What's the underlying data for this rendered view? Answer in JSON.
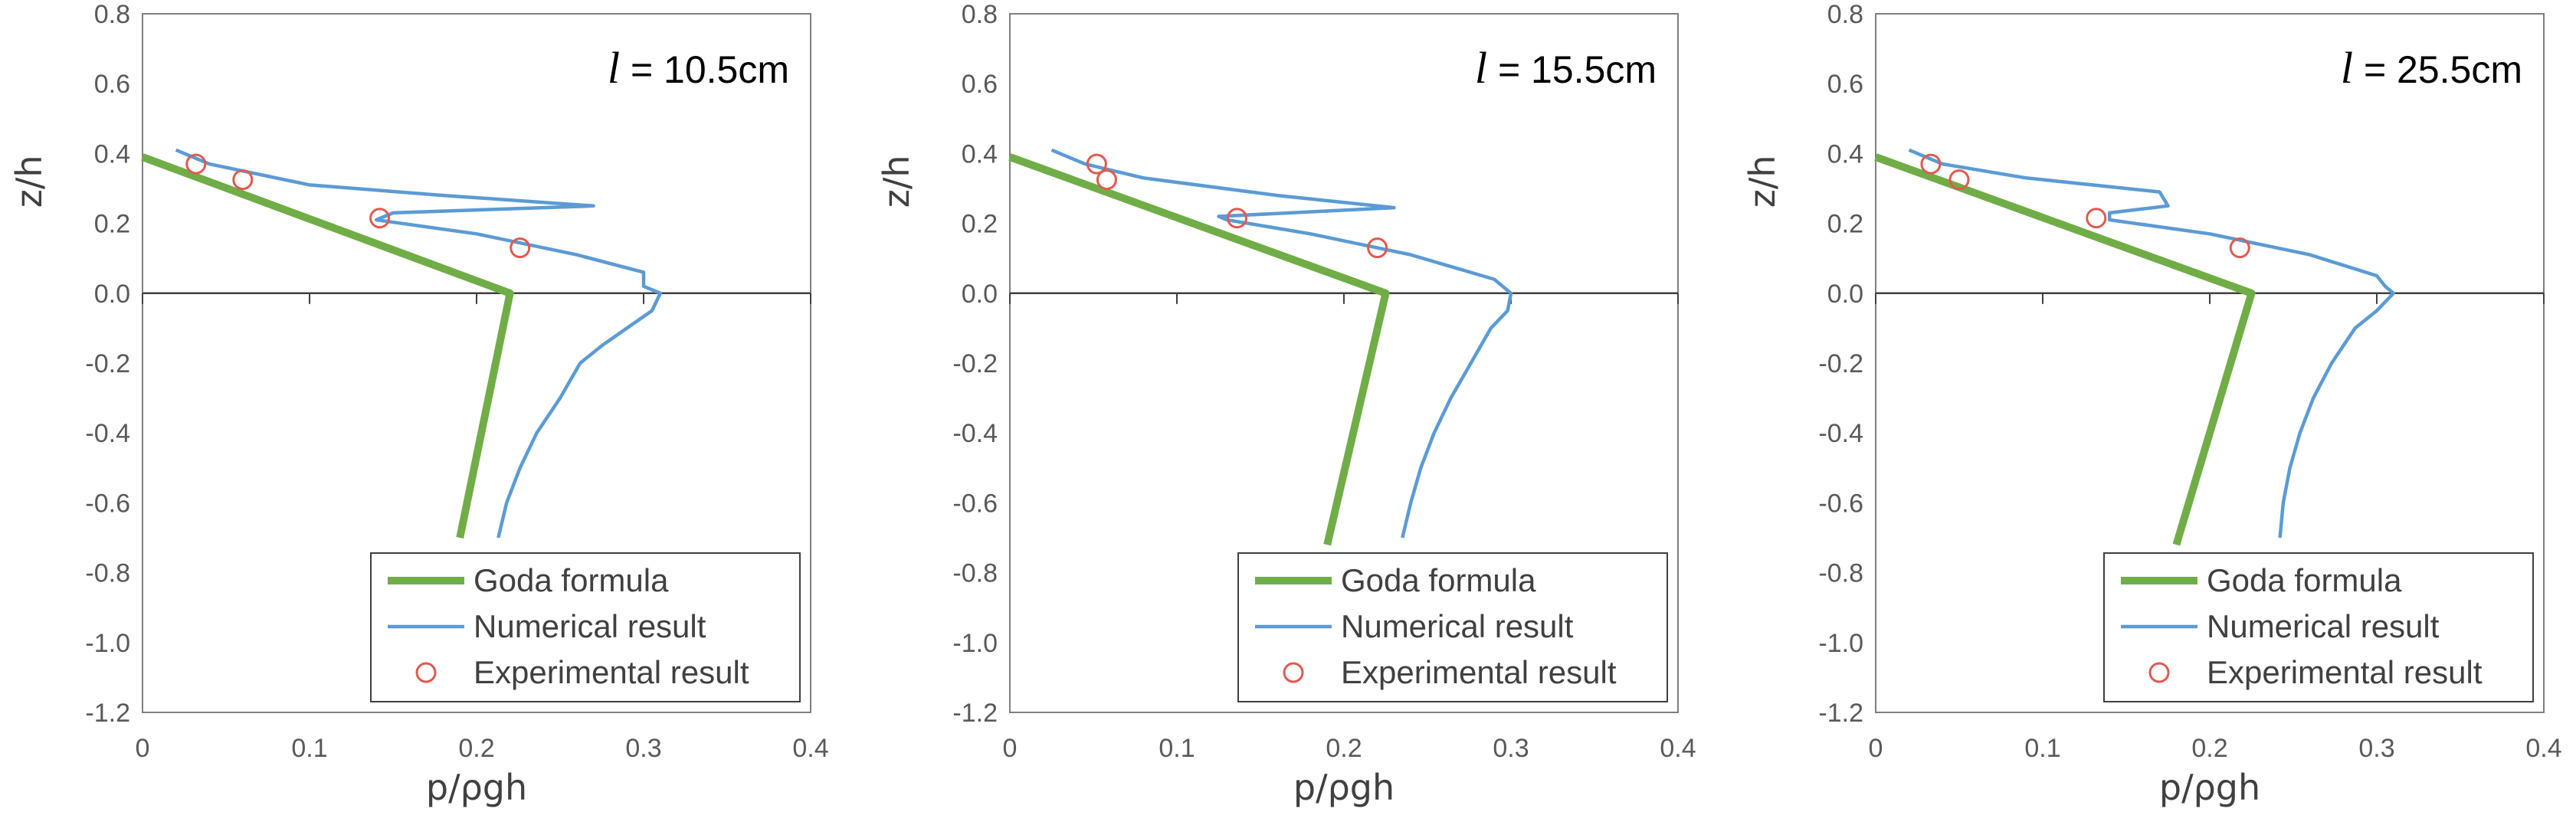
{
  "chart_data": [
    {
      "type": "line",
      "annotation": {
        "symbol": "l",
        "text": " = 10.5cm"
      },
      "xlabel": "p/ρgh",
      "ylabel": "z/h",
      "xlim": [
        0,
        0.4
      ],
      "ylim": [
        -1.2,
        0.8
      ],
      "x_ticks": [
        "0",
        "0.1",
        "0.2",
        "0.3",
        "0.4"
      ],
      "y_ticks": [
        "0.8",
        "0.6",
        "0.4",
        "0.2",
        "0.0",
        "-0.2",
        "-0.4",
        "-0.6",
        "-0.8",
        "-1.0",
        "-1.2"
      ],
      "legend": {
        "position": "bottom-right",
        "entries": [
          "Goda formula",
          "Numerical result",
          "Experimental result"
        ]
      },
      "series": [
        {
          "name": "Goda formula",
          "color": "#70ad47",
          "style": "thick-line",
          "points": [
            [
              0.0,
              0.39
            ],
            [
              0.22,
              0.0
            ],
            [
              0.19,
              -0.7
            ]
          ]
        },
        {
          "name": "Numerical result",
          "color": "#5b9bd5",
          "style": "line",
          "points": [
            [
              0.02,
              0.41
            ],
            [
              0.04,
              0.37
            ],
            [
              0.1,
              0.31
            ],
            [
              0.18,
              0.28
            ],
            [
              0.27,
              0.25
            ],
            [
              0.15,
              0.23
            ],
            [
              0.14,
              0.21
            ],
            [
              0.2,
              0.17
            ],
            [
              0.26,
              0.11
            ],
            [
              0.3,
              0.06
            ],
            [
              0.3,
              0.02
            ],
            [
              0.31,
              0.0
            ],
            [
              0.305,
              -0.05
            ],
            [
              0.29,
              -0.1
            ],
            [
              0.275,
              -0.15
            ],
            [
              0.262,
              -0.2
            ],
            [
              0.25,
              -0.3
            ],
            [
              0.236,
              -0.4
            ],
            [
              0.226,
              -0.5
            ],
            [
              0.218,
              -0.6
            ],
            [
              0.213,
              -0.7
            ]
          ]
        },
        {
          "name": "Experimental result",
          "color": "#e05a50",
          "style": "marker",
          "points": [
            [
              0.032,
              0.37
            ],
            [
              0.06,
              0.325
            ],
            [
              0.142,
              0.215
            ],
            [
              0.226,
              0.13
            ]
          ]
        }
      ]
    },
    {
      "type": "line",
      "annotation": {
        "symbol": "l",
        "text": " = 15.5cm"
      },
      "xlabel": "p/ρgh",
      "ylabel": "z/h",
      "xlim": [
        0,
        0.4
      ],
      "ylim": [
        -1.2,
        0.8
      ],
      "x_ticks": [
        "0",
        "0.1",
        "0.2",
        "0.3",
        "0.4"
      ],
      "y_ticks": [
        "0.8",
        "0.6",
        "0.4",
        "0.2",
        "0.0",
        "-0.2",
        "-0.4",
        "-0.6",
        "-0.8",
        "-1.0",
        "-1.2"
      ],
      "legend": {
        "position": "bottom-right",
        "entries": [
          "Goda formula",
          "Numerical result",
          "Experimental result"
        ]
      },
      "series": [
        {
          "name": "Goda formula",
          "color": "#70ad47",
          "style": "thick-line",
          "points": [
            [
              0.0,
              0.39
            ],
            [
              0.225,
              0.0
            ],
            [
              0.19,
              -0.72
            ]
          ]
        },
        {
          "name": "Numerical result",
          "color": "#5b9bd5",
          "style": "line",
          "points": [
            [
              0.025,
              0.41
            ],
            [
              0.045,
              0.37
            ],
            [
              0.08,
              0.33
            ],
            [
              0.16,
              0.28
            ],
            [
              0.23,
              0.245
            ],
            [
              0.125,
              0.22
            ],
            [
              0.13,
              0.21
            ],
            [
              0.18,
              0.17
            ],
            [
              0.24,
              0.11
            ],
            [
              0.29,
              0.04
            ],
            [
              0.3,
              0.0
            ],
            [
              0.298,
              -0.05
            ],
            [
              0.288,
              -0.1
            ],
            [
              0.276,
              -0.2
            ],
            [
              0.264,
              -0.3
            ],
            [
              0.254,
              -0.4
            ],
            [
              0.246,
              -0.5
            ],
            [
              0.24,
              -0.6
            ],
            [
              0.235,
              -0.7
            ]
          ]
        },
        {
          "name": "Experimental result",
          "color": "#e05a50",
          "style": "marker",
          "points": [
            [
              0.052,
              0.37
            ],
            [
              0.058,
              0.325
            ],
            [
              0.136,
              0.215
            ],
            [
              0.22,
              0.13
            ]
          ]
        }
      ]
    },
    {
      "type": "line",
      "annotation": {
        "symbol": "l",
        "text": " = 25.5cm"
      },
      "xlabel": "p/ρgh",
      "ylabel": "z/h",
      "xlim": [
        0,
        0.4
      ],
      "ylim": [
        -1.2,
        0.8
      ],
      "x_ticks": [
        "0",
        "0.1",
        "0.2",
        "0.3",
        "0.4"
      ],
      "y_ticks": [
        "0.8",
        "0.6",
        "0.4",
        "0.2",
        "0.0",
        "-0.2",
        "-0.4",
        "-0.6",
        "-0.8",
        "-1.0",
        "-1.2"
      ],
      "legend": {
        "position": "bottom-right",
        "entries": [
          "Goda formula",
          "Numerical result",
          "Experimental result"
        ]
      },
      "series": [
        {
          "name": "Goda formula",
          "color": "#70ad47",
          "style": "thick-line",
          "points": [
            [
              0.0,
              0.39
            ],
            [
              0.225,
              0.0
            ],
            [
              0.18,
              -0.72
            ]
          ]
        },
        {
          "name": "Numerical result",
          "color": "#5b9bd5",
          "style": "line",
          "points": [
            [
              0.02,
              0.41
            ],
            [
              0.04,
              0.37
            ],
            [
              0.09,
              0.33
            ],
            [
              0.17,
              0.29
            ],
            [
              0.175,
              0.25
            ],
            [
              0.14,
              0.23
            ],
            [
              0.14,
              0.21
            ],
            [
              0.2,
              0.17
            ],
            [
              0.26,
              0.11
            ],
            [
              0.3,
              0.05
            ],
            [
              0.305,
              0.02
            ],
            [
              0.31,
              0.0
            ],
            [
              0.3,
              -0.05
            ],
            [
              0.287,
              -0.1
            ],
            [
              0.273,
              -0.2
            ],
            [
              0.262,
              -0.3
            ],
            [
              0.254,
              -0.4
            ],
            [
              0.248,
              -0.5
            ],
            [
              0.244,
              -0.6
            ],
            [
              0.242,
              -0.7
            ]
          ]
        },
        {
          "name": "Experimental result",
          "color": "#e05a50",
          "style": "marker",
          "points": [
            [
              0.033,
              0.37
            ],
            [
              0.05,
              0.325
            ],
            [
              0.132,
              0.215
            ],
            [
              0.218,
              0.13
            ]
          ]
        }
      ]
    }
  ]
}
